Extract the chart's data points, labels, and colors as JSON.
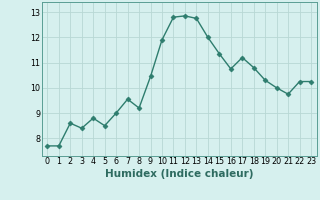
{
  "x": [
    0,
    1,
    2,
    3,
    4,
    5,
    6,
    7,
    8,
    9,
    10,
    11,
    12,
    13,
    14,
    15,
    16,
    17,
    18,
    19,
    20,
    21,
    22,
    23
  ],
  "y": [
    7.7,
    7.7,
    8.6,
    8.4,
    8.8,
    8.5,
    9.0,
    9.55,
    9.2,
    10.45,
    11.9,
    12.8,
    12.85,
    12.75,
    12.0,
    11.35,
    10.75,
    11.2,
    10.8,
    10.3,
    10.0,
    9.75,
    10.25,
    10.25
  ],
  "line_color": "#2e7d6e",
  "marker": "D",
  "marker_size": 2.5,
  "bg_color": "#d6f0ee",
  "grid_color": "#b8d8d4",
  "xlabel": "Humidex (Indice chaleur)",
  "xlim": [
    -0.5,
    23.5
  ],
  "ylim": [
    7.3,
    13.4
  ],
  "yticks": [
    8,
    9,
    10,
    11,
    12,
    13
  ],
  "xticks": [
    0,
    1,
    2,
    3,
    4,
    5,
    6,
    7,
    8,
    9,
    10,
    11,
    12,
    13,
    14,
    15,
    16,
    17,
    18,
    19,
    20,
    21,
    22,
    23
  ],
  "tick_fontsize": 5.8,
  "xlabel_fontsize": 7.5,
  "line_width": 1.0
}
